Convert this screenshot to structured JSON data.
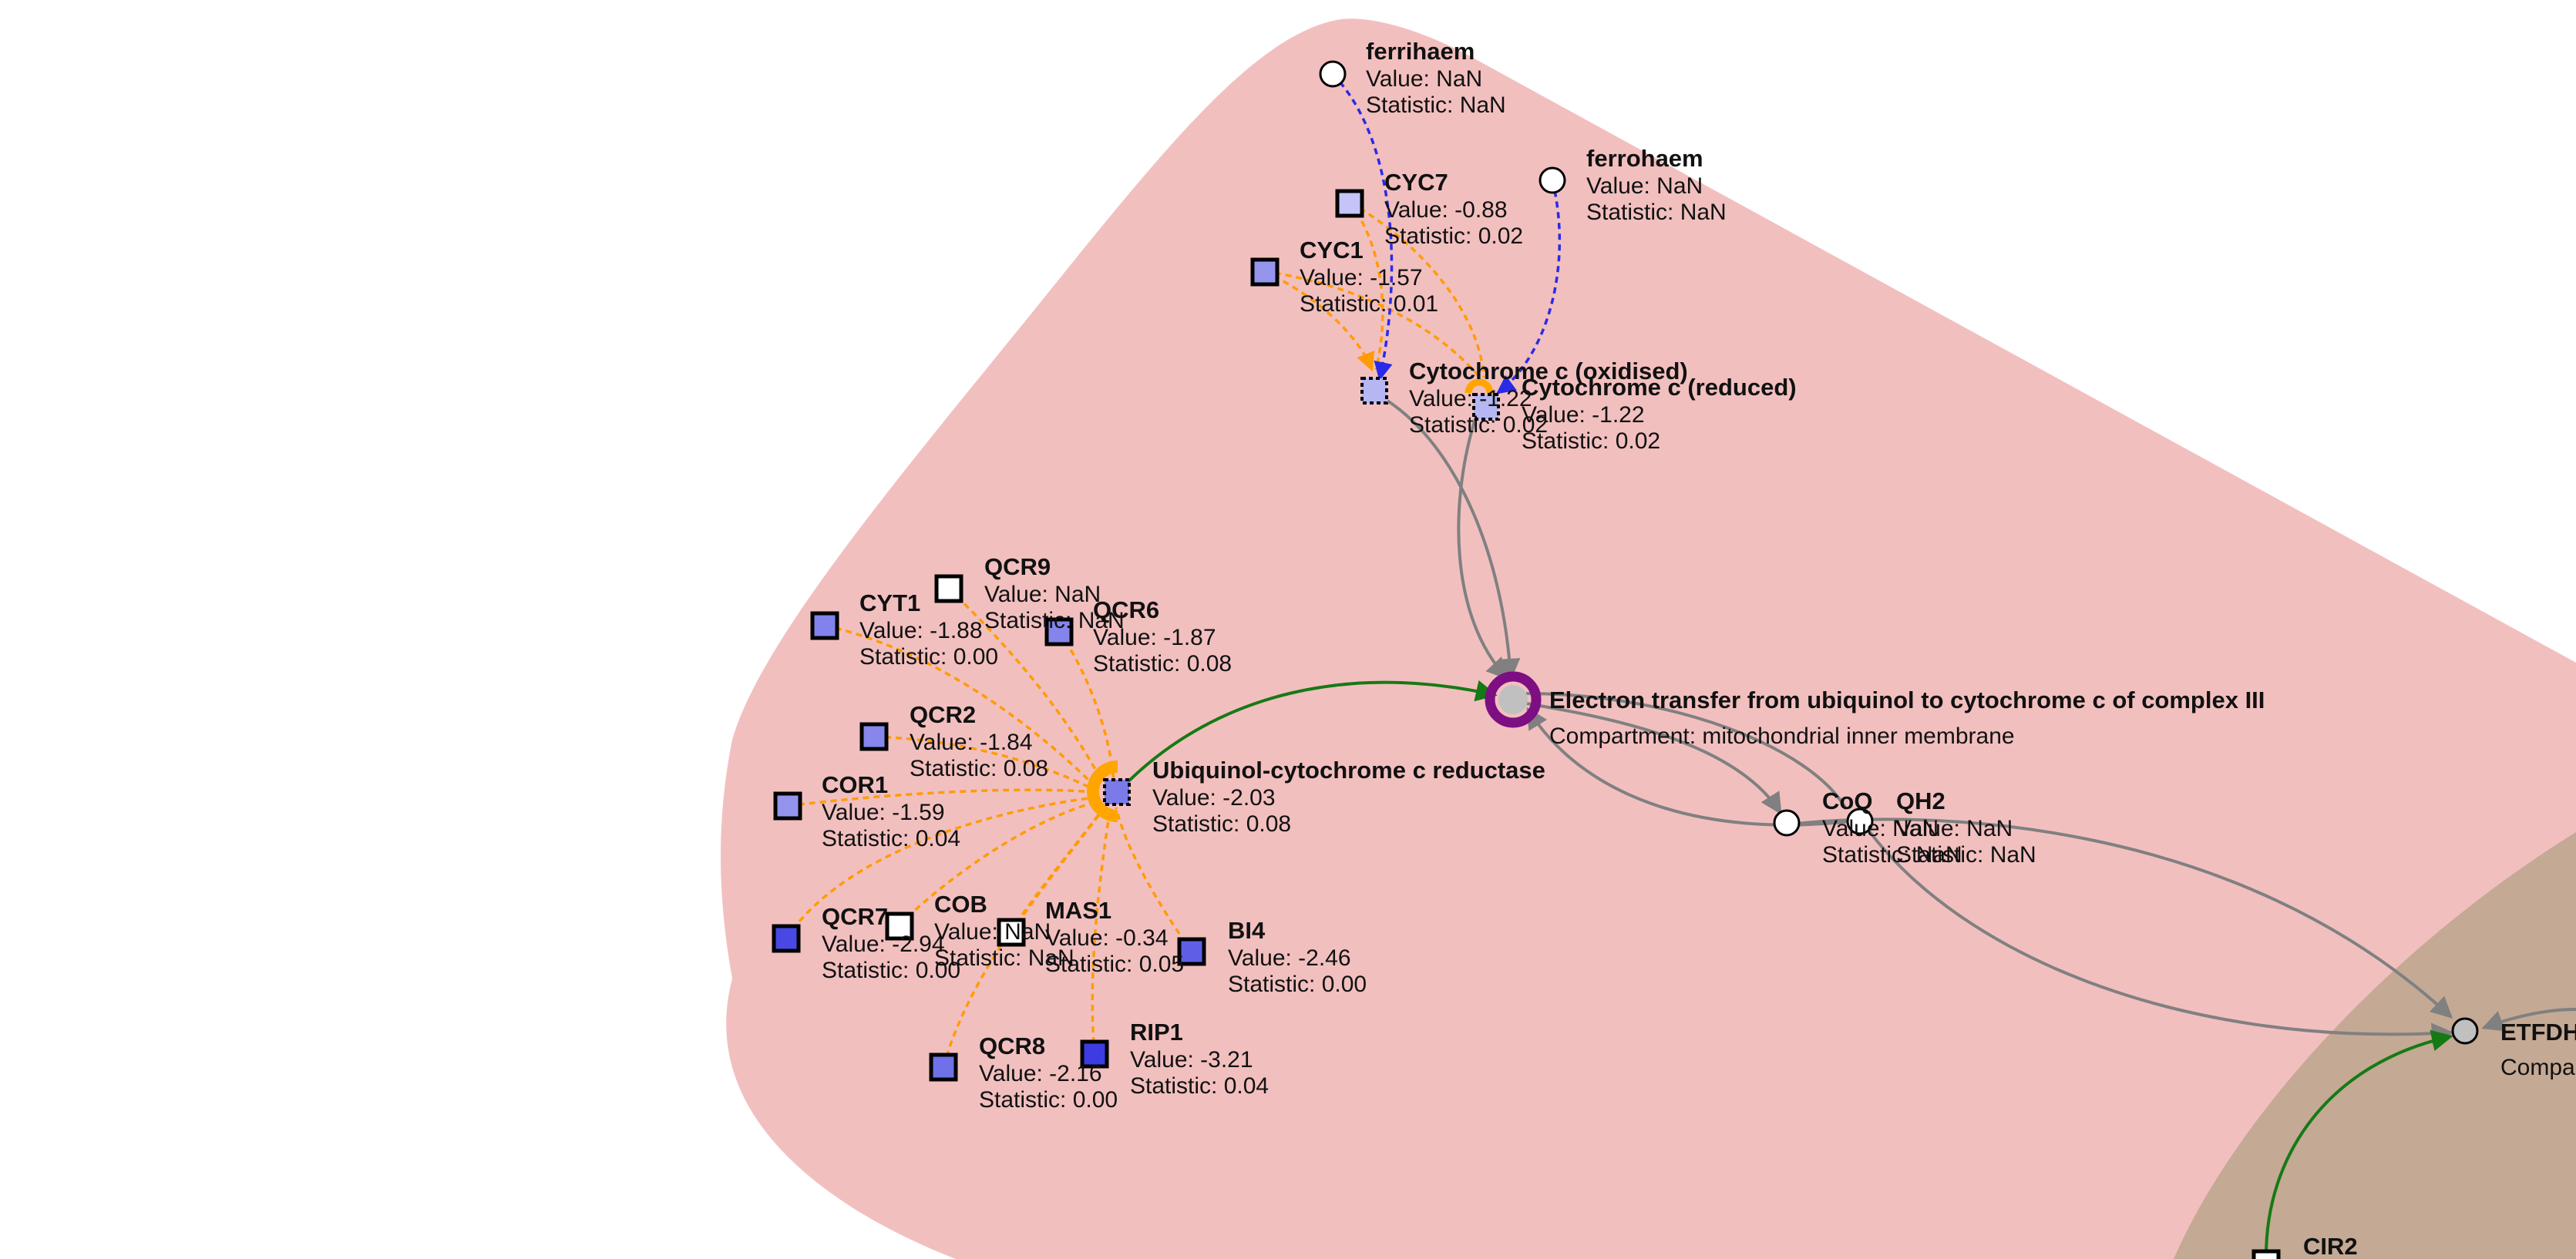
{
  "colors": {
    "compartment_mito": "#f2bfbf",
    "compartment_other": "#c4a994",
    "edge_orange": "#ff9c05",
    "edge_blue": "#2a2ae8",
    "edge_gray": "#808080",
    "edge_green": "#157a15",
    "reaction_ring": "#7d0f82",
    "reaction_core": "#c0c0c0",
    "complex_marker": "#ffa500"
  },
  "nodes": {
    "ferrihaem": {
      "title": "ferrihaem",
      "value": "Value: NaN",
      "statistic": "Statistic: NaN",
      "fill": "#ffffff"
    },
    "ferrohaem": {
      "title": "ferrohaem",
      "value": "Value: NaN",
      "statistic": "Statistic: NaN",
      "fill": "#ffffff"
    },
    "cyc7": {
      "title": "CYC7",
      "value": "Value: -0.88",
      "statistic": "Statistic: 0.02",
      "fill": "#c4c4f8"
    },
    "cyc1": {
      "title": "CYC1",
      "value": "Value: -1.57",
      "statistic": "Statistic: 0.01",
      "fill": "#9595ee"
    },
    "cytc_ox": {
      "title": "Cytochrome c (oxidised)",
      "value": "Value: -1.22",
      "statistic": "Statistic: 0.02",
      "fill": "#b6b6f2"
    },
    "cytc_red": {
      "title": "Cytochrome c (reduced)",
      "value": "Value: -1.22",
      "statistic": "Statistic: 0.02",
      "fill": "#b6b6f2"
    },
    "qcr9": {
      "title": "QCR9",
      "value": "Value: NaN",
      "statistic": "Statistic: NaN",
      "fill": "#ffffff"
    },
    "cyt1": {
      "title": "CYT1",
      "value": "Value: -1.88",
      "statistic": "Statistic: 0.00",
      "fill": "#8282ec"
    },
    "qcr6": {
      "title": "QCR6",
      "value": "Value: -1.87",
      "statistic": "Statistic: 0.08",
      "fill": "#8484ec"
    },
    "qcr2": {
      "title": "QCR2",
      "value": "Value: -1.84",
      "statistic": "Statistic: 0.08",
      "fill": "#8686ec"
    },
    "cor1": {
      "title": "COR1",
      "value": "Value: -1.59",
      "statistic": "Statistic: 0.04",
      "fill": "#9494ee"
    },
    "ubq_red": {
      "title": "Ubiquinol-cytochrome c reductase",
      "value": "Value: -2.03",
      "statistic": "Statistic: 0.08",
      "fill": "#7a7ae8"
    },
    "qcr7": {
      "title": "QCR7",
      "value": "Value: -2.94",
      "statistic": "Statistic: 0.00",
      "fill": "#4848e4"
    },
    "cob": {
      "title": "COB",
      "value": "Value: NaN",
      "statistic": "Statistic: NaN",
      "fill": "#ffffff"
    },
    "mas1": {
      "title": "MAS1",
      "value": "Value: -0.34",
      "statistic": "Statistic: 0.05",
      "fill": "#ffffff"
    },
    "bi4": {
      "title": "BI4",
      "value": "Value: -2.46",
      "statistic": "Statistic: 0.00",
      "fill": "#5f5fe6"
    },
    "qcr8": {
      "title": "QCR8",
      "value": "Value: -2.16",
      "statistic": "Statistic: 0.00",
      "fill": "#7070e8"
    },
    "rip1": {
      "title": "RIP1",
      "value": "Value: -3.21",
      "statistic": "Statistic: 0.04",
      "fill": "#3c3ce2"
    },
    "reaction": {
      "title": "Electron transfer from ubiquinol to cytochrome c of complex III",
      "compartment": "Compartment: mitochondrial inner membrane"
    },
    "coq": {
      "title": "CoQ",
      "value": "Value: NaN",
      "statistic": "Statistic: NaN",
      "fill": "#ffffff"
    },
    "qh2": {
      "title": "QH2",
      "value": "Value: NaN",
      "statistic": "Statistic: NaN",
      "fill": "#ffffff"
    },
    "etfdh": {
      "title": "ETFDH",
      "compartment": "Compa"
    },
    "cir2": {
      "title": "CIR2"
    }
  }
}
